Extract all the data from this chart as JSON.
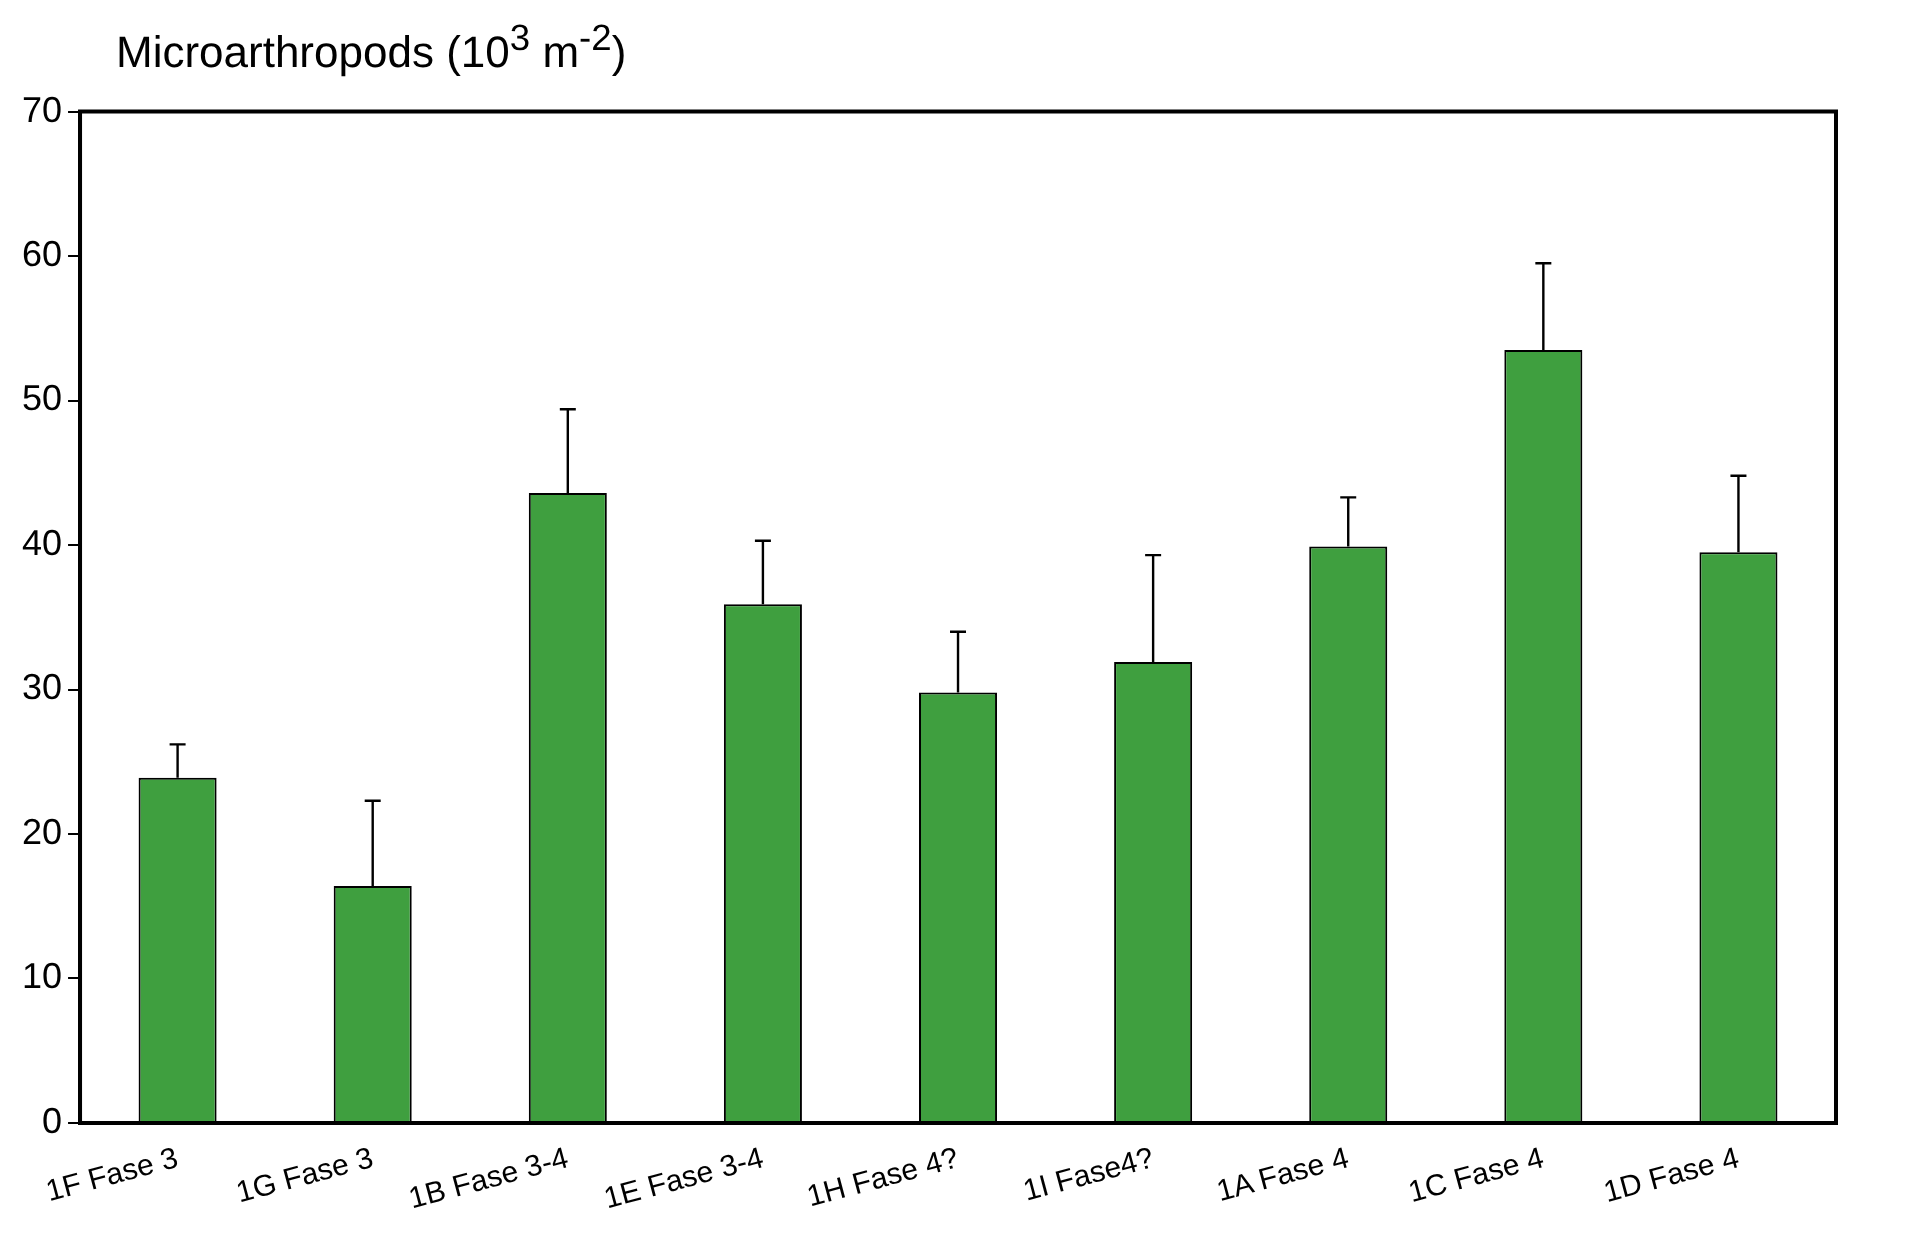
{
  "chart_data": {
    "type": "bar",
    "title": "Microarthropods (10$^{3}$ m$^{-2}$)",
    "categories": [
      "1F Fase 3",
      "1G Fase 3",
      "1B Fase 3-4",
      "1E Fase 3-4",
      "1H Fase 4?",
      "1I Fase4?",
      "1A Fase 4",
      "1C Fase 4",
      "1D Fase 4"
    ],
    "values": [
      23.9,
      16.4,
      43.6,
      35.9,
      29.8,
      31.9,
      39.9,
      53.5,
      39.5
    ],
    "errors": [
      [
        23.9,
        26.2
      ],
      [
        16.4,
        22.3
      ],
      [
        43.6,
        49.4
      ],
      [
        35.9,
        40.3
      ],
      [
        29.8,
        34.0
      ],
      [
        31.9,
        39.3
      ],
      [
        39.9,
        43.3
      ],
      [
        53.5,
        59.5
      ],
      [
        39.5,
        44.8
      ]
    ],
    "color": "#3f9f3f",
    "ylim": [
      0,
      70
    ],
    "yticks": [
      0,
      10,
      20,
      30,
      40,
      50,
      60,
      70
    ],
    "grid": false,
    "legend": false
  }
}
